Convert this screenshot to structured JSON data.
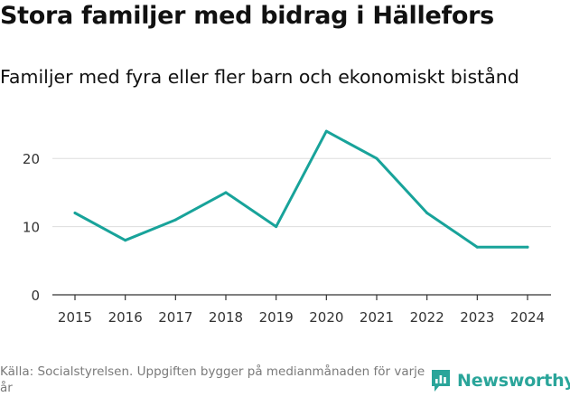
{
  "title": "Stora familjer med bidrag i Hällefors",
  "subtitle": "Familjer med fyra eller fler barn och ekonomiskt bistånd",
  "footer": "Källa: Socialstyrelsen. Uppgiften bygger på medianmånaden för varje år",
  "brand": {
    "name": "Newsworthy",
    "color": "#2aa59a"
  },
  "chart_data": {
    "type": "line",
    "title": "Stora familjer med bidrag i Hällefors",
    "subtitle": "Familjer med fyra eller fler barn och ekonomiskt bistånd",
    "xlabel": "",
    "ylabel": "",
    "x": [
      "2015",
      "2016",
      "2017",
      "2018",
      "2019",
      "2020",
      "2021",
      "2022",
      "2023",
      "2024"
    ],
    "values": [
      12,
      8,
      11,
      15,
      10,
      24,
      20,
      12,
      7,
      7
    ],
    "ylim": [
      0,
      26
    ],
    "yticks": [
      0,
      10,
      20
    ],
    "grid": true,
    "line_color": "#18a39a",
    "grid_color": "#dddddd"
  }
}
